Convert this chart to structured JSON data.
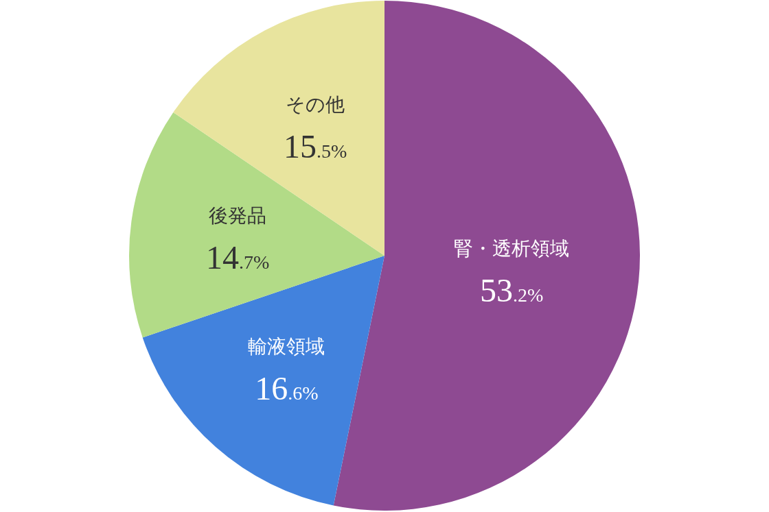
{
  "chart_data": {
    "type": "pie",
    "categories": [
      "腎・透析領域",
      "輸液領域",
      "後発品",
      "その他"
    ],
    "values": [
      53.2,
      16.6,
      14.7,
      15.5
    ],
    "colors": [
      "#8e4a92",
      "#4282dd",
      "#b2db87",
      "#e8e49e"
    ],
    "value_labels": [
      "53.2%",
      "16.6%",
      "14.7%",
      "15.5%"
    ]
  }
}
